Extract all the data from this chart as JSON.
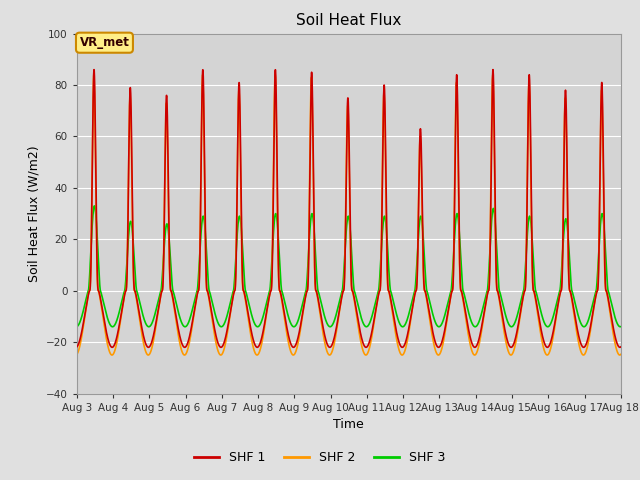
{
  "title": "Soil Heat Flux",
  "xlabel": "Time",
  "ylabel": "Soil Heat Flux (W/m2)",
  "ylim": [
    -40,
    100
  ],
  "yticks": [
    -40,
    -20,
    0,
    20,
    40,
    60,
    80,
    100
  ],
  "background_color": "#e0e0e0",
  "plot_bg_color": "#d4d4d4",
  "grid_color": "#ffffff",
  "shf1_color": "#cc0000",
  "shf2_color": "#ff9900",
  "shf3_color": "#00cc00",
  "legend_label1": "SHF 1",
  "legend_label2": "SHF 2",
  "legend_label3": "SHF 3",
  "annotation_text": "VR_met",
  "annotation_fg": "#330000",
  "annotation_bg": "#ffee88",
  "annotation_edge": "#cc8800",
  "n_days": 15,
  "points_per_day": 288,
  "start_day": 3,
  "end_day": 18
}
